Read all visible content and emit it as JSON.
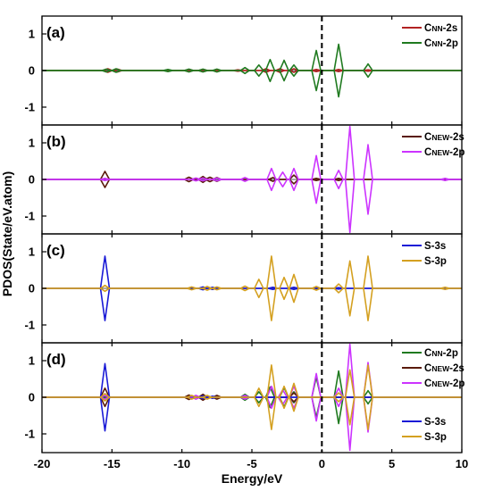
{
  "chart_data": {
    "type": "line",
    "xlabel": "Energy/eV",
    "ylabel": "PDOS(State/eV.atom)",
    "xlim": [
      -20,
      10
    ],
    "xticks": [
      "-20",
      "-15",
      "-10",
      "-5",
      "0",
      "5",
      "10"
    ],
    "fermi_level": 0,
    "panels": [
      {
        "label": "(a)",
        "ylim": [
          -1.5,
          1.5
        ],
        "yticks": [
          "1",
          "0",
          "-1"
        ],
        "legend_position": "top-right",
        "series": [
          {
            "name": "CNN-2s",
            "color": "#b22222",
            "peaks": [
              [
                -15.3,
                0.05
              ],
              [
                -14.6,
                0.04
              ],
              [
                -9.5,
                0.03
              ],
              [
                -8.5,
                0.03
              ],
              [
                -6.0,
                0.02
              ],
              [
                -4.0,
                0.05
              ],
              [
                -3.0,
                0.05
              ],
              [
                -2.0,
                0.05
              ],
              [
                -0.4,
                0.03
              ],
              [
                1.2,
                0.03
              ],
              [
                3.3,
                0.02
              ]
            ]
          },
          {
            "name": "CNN-2p",
            "color": "#1f7a1f",
            "peaks": [
              [
                -15.4,
                0.04
              ],
              [
                -14.7,
                0.05
              ],
              [
                -11.0,
                0.03
              ],
              [
                -9.5,
                0.04
              ],
              [
                -8.5,
                0.04
              ],
              [
                -7.5,
                0.04
              ],
              [
                -5.5,
                0.08
              ],
              [
                -4.5,
                0.15
              ],
              [
                -3.7,
                0.3
              ],
              [
                -2.7,
                0.28
              ],
              [
                -2.0,
                0.15
              ],
              [
                -0.4,
                0.55
              ],
              [
                1.2,
                0.72
              ],
              [
                3.3,
                0.18
              ]
            ]
          }
        ]
      },
      {
        "label": "(b)",
        "ylim": [
          -1.5,
          1.5
        ],
        "yticks": [
          "1",
          "0",
          "-1"
        ],
        "legend_position": "top-right",
        "series": [
          {
            "name": "CNEW-2s",
            "color": "#5a1a0a",
            "peaks": [
              [
                -15.5,
                0.22
              ],
              [
                -9.5,
                0.06
              ],
              [
                -8.5,
                0.08
              ],
              [
                -8.0,
                0.06
              ],
              [
                -7.5,
                0.05
              ],
              [
                -3.5,
                0.05
              ],
              [
                -2.0,
                0.12
              ],
              [
                -0.4,
                0.03
              ],
              [
                1.2,
                0.03
              ]
            ]
          },
          {
            "name": "CNEW-2p",
            "color": "#cc33ff",
            "peaks": [
              [
                -15.5,
                0.03
              ],
              [
                -9.0,
                0.04
              ],
              [
                -8.5,
                0.04
              ],
              [
                -7.5,
                0.04
              ],
              [
                -5.5,
                0.05
              ],
              [
                -3.6,
                0.3
              ],
              [
                -2.8,
                0.2
              ],
              [
                -2.0,
                0.3
              ],
              [
                -0.4,
                0.65
              ],
              [
                1.2,
                0.25
              ],
              [
                2.0,
                1.45
              ],
              [
                3.3,
                0.95
              ],
              [
                8.8,
                0.03
              ]
            ]
          }
        ]
      },
      {
        "label": "(c)",
        "ylim": [
          -1.5,
          1.5
        ],
        "yticks": [
          "1",
          "0",
          "-1"
        ],
        "legend_position": "top-right",
        "series": [
          {
            "name": "S-3s",
            "color": "#1a1ad6",
            "peaks": [
              [
                -15.5,
                0.88
              ],
              [
                -9.3,
                0.03
              ],
              [
                -8.5,
                0.04
              ],
              [
                -7.8,
                0.03
              ],
              [
                -3.5,
                0.03
              ],
              [
                -2.0,
                0.03
              ],
              [
                -0.4,
                0.03
              ],
              [
                1.2,
                0.02
              ]
            ]
          },
          {
            "name": "S-3p",
            "color": "#d4a020",
            "peaks": [
              [
                -15.5,
                0.08
              ],
              [
                -9.3,
                0.04
              ],
              [
                -8.2,
                0.05
              ],
              [
                -7.5,
                0.04
              ],
              [
                -5.5,
                0.06
              ],
              [
                -4.5,
                0.25
              ],
              [
                -3.6,
                0.88
              ],
              [
                -2.7,
                0.3
              ],
              [
                -2.0,
                0.38
              ],
              [
                -0.4,
                0.05
              ],
              [
                1.2,
                0.12
              ],
              [
                2.0,
                0.75
              ],
              [
                3.3,
                0.88
              ],
              [
                8.8,
                0.03
              ]
            ]
          }
        ]
      },
      {
        "label": "(d)",
        "ylim": [
          -1.5,
          1.5
        ],
        "yticks": [
          "1",
          "0",
          "-1"
        ],
        "legend_position": "right",
        "series": [
          {
            "name": "CNN-2p",
            "color": "#1f7a1f",
            "peaks": [
              [
                -15.4,
                0.04
              ],
              [
                -9.5,
                0.04
              ],
              [
                -8.5,
                0.04
              ],
              [
                -5.5,
                0.08
              ],
              [
                -4.5,
                0.15
              ],
              [
                -3.7,
                0.28
              ],
              [
                -2.7,
                0.26
              ],
              [
                -2.0,
                0.15
              ],
              [
                -0.4,
                0.55
              ],
              [
                1.2,
                0.72
              ],
              [
                3.3,
                0.18
              ]
            ]
          },
          {
            "name": "CNEW-2s",
            "color": "#5a1a0a",
            "peaks": [
              [
                -15.5,
                0.25
              ],
              [
                -9.5,
                0.06
              ],
              [
                -8.5,
                0.08
              ],
              [
                -7.5,
                0.05
              ],
              [
                -2.0,
                0.12
              ]
            ]
          },
          {
            "name": "CNEW-2p",
            "color": "#cc33ff",
            "peaks": [
              [
                -15.5,
                0.05
              ],
              [
                -9.0,
                0.05
              ],
              [
                -5.5,
                0.05
              ],
              [
                -3.6,
                0.3
              ],
              [
                -2.8,
                0.2
              ],
              [
                -2.0,
                0.3
              ],
              [
                -0.4,
                0.65
              ],
              [
                1.2,
                0.25
              ],
              [
                2.0,
                1.45
              ],
              [
                3.3,
                0.95
              ]
            ]
          },
          {
            "name": "S-3s",
            "color": "#1a1ad6",
            "peaks": [
              [
                -15.5,
                0.92
              ],
              [
                -9.3,
                0.04
              ],
              [
                -8.5,
                0.04
              ],
              [
                -7.8,
                0.03
              ]
            ]
          },
          {
            "name": "S-3p",
            "color": "#d4a020",
            "peaks": [
              [
                -15.5,
                0.1
              ],
              [
                -9.3,
                0.05
              ],
              [
                -8.2,
                0.05
              ],
              [
                -4.5,
                0.25
              ],
              [
                -3.6,
                0.88
              ],
              [
                -2.7,
                0.3
              ],
              [
                -2.0,
                0.38
              ],
              [
                1.2,
                0.12
              ],
              [
                2.0,
                0.75
              ],
              [
                3.3,
                0.88
              ]
            ]
          }
        ]
      }
    ]
  }
}
